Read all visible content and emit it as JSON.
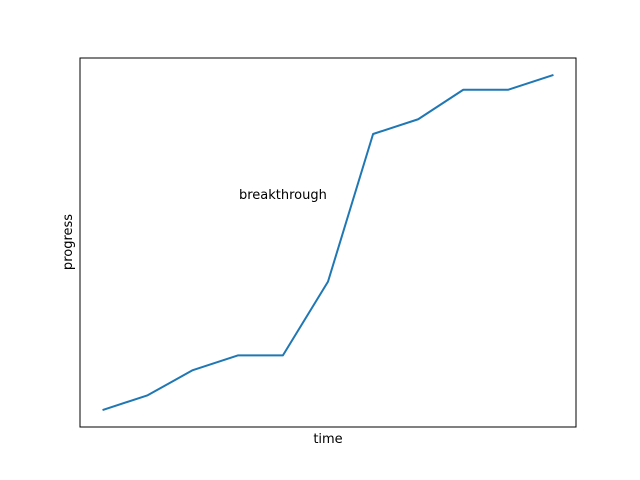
{
  "chart_data": {
    "type": "line",
    "title": "",
    "xlabel": "time",
    "ylabel": "progress",
    "x": [
      0,
      1,
      2,
      3,
      4,
      5,
      6,
      7,
      8,
      9,
      10
    ],
    "series": [
      {
        "values": [
          0.3,
          1.3,
          3.0,
          4.0,
          4.0,
          9.0,
          19.0,
          20.0,
          22.0,
          22.0,
          23.0
        ],
        "color": "#1f77b4"
      }
    ],
    "xlim": [
      -0.5,
      10.5
    ],
    "ylim": [
      -0.85,
      24.15
    ],
    "xticks_visible": false,
    "yticks_visible": false,
    "grid": false,
    "annotations": [
      {
        "text": "breakthrough",
        "x": 4.0,
        "y": 14.6
      }
    ]
  }
}
